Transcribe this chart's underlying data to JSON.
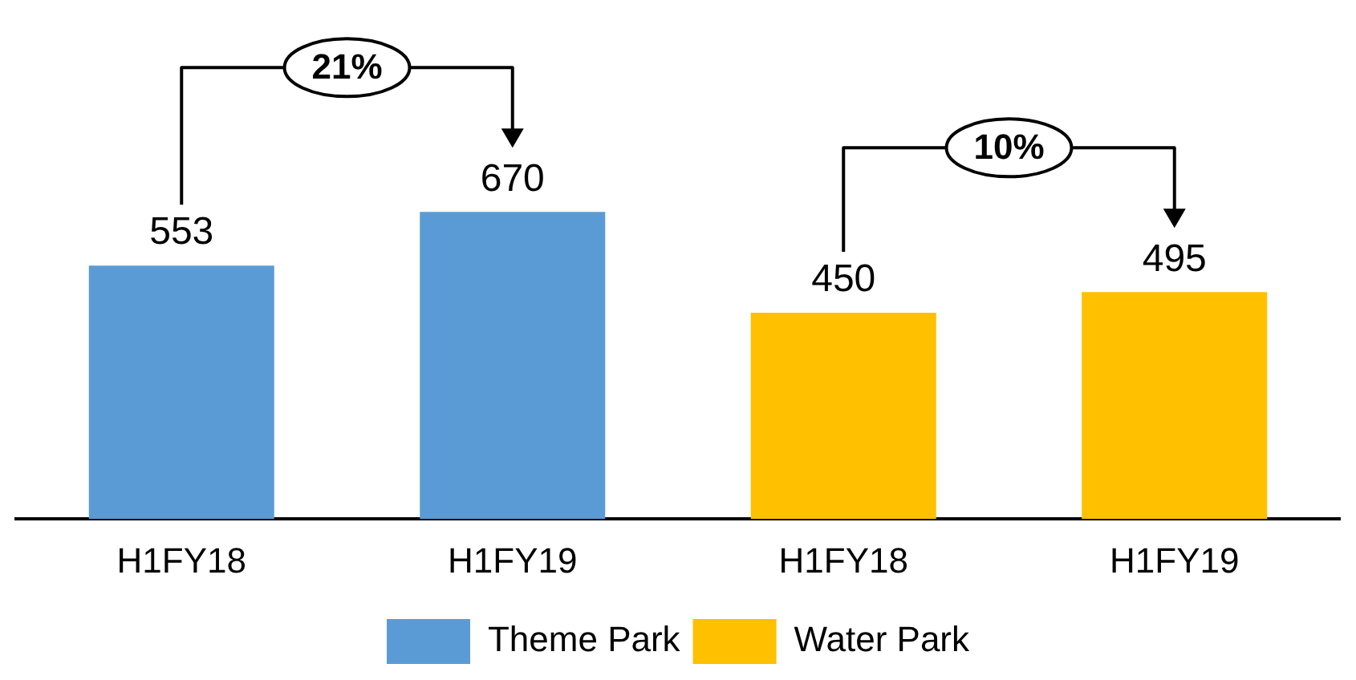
{
  "chart_data": {
    "type": "bar",
    "categories": [
      "H1FY18",
      "H1FY19",
      "H1FY18",
      "H1FY19"
    ],
    "series": [
      {
        "name": "Theme Park",
        "color": "#5b9bd5",
        "values": [
          553,
          670,
          null,
          null
        ]
      },
      {
        "name": "Water Park",
        "color": "#ffc000",
        "values": [
          null,
          null,
          450,
          495
        ]
      }
    ],
    "data_labels": true,
    "legend": "bottom",
    "grid": false,
    "annotations": [
      "21%",
      "10%"
    ]
  }
}
